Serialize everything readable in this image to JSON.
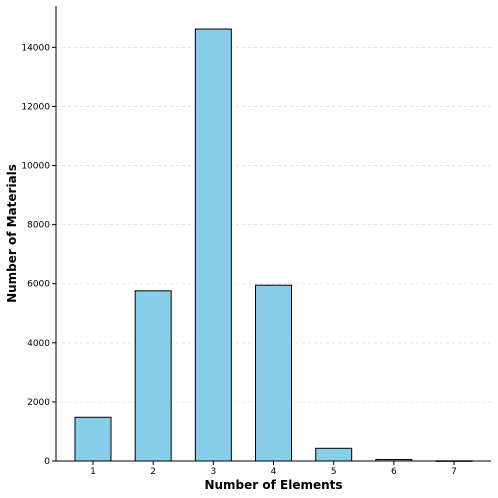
{
  "chart_data": {
    "type": "bar",
    "title": "",
    "xlabel": "Number of Elements",
    "ylabel": "Number of Materials",
    "categories": [
      "1",
      "2",
      "3",
      "4",
      "5",
      "6",
      "7"
    ],
    "values": [
      1480,
      5760,
      14620,
      5950,
      430,
      50,
      5
    ],
    "ylim": [
      0,
      15400
    ],
    "yticks": [
      0,
      2000,
      4000,
      6000,
      8000,
      10000,
      12000,
      14000
    ],
    "ytick_labels": [
      "0",
      "2000",
      "4000",
      "6000",
      "8000",
      "10000",
      "12000",
      "14000"
    ],
    "grid": "y-dashed",
    "bar_color": "#87CEEB",
    "bar_edge_color": "#000000",
    "grid_color": "#dddddd"
  }
}
